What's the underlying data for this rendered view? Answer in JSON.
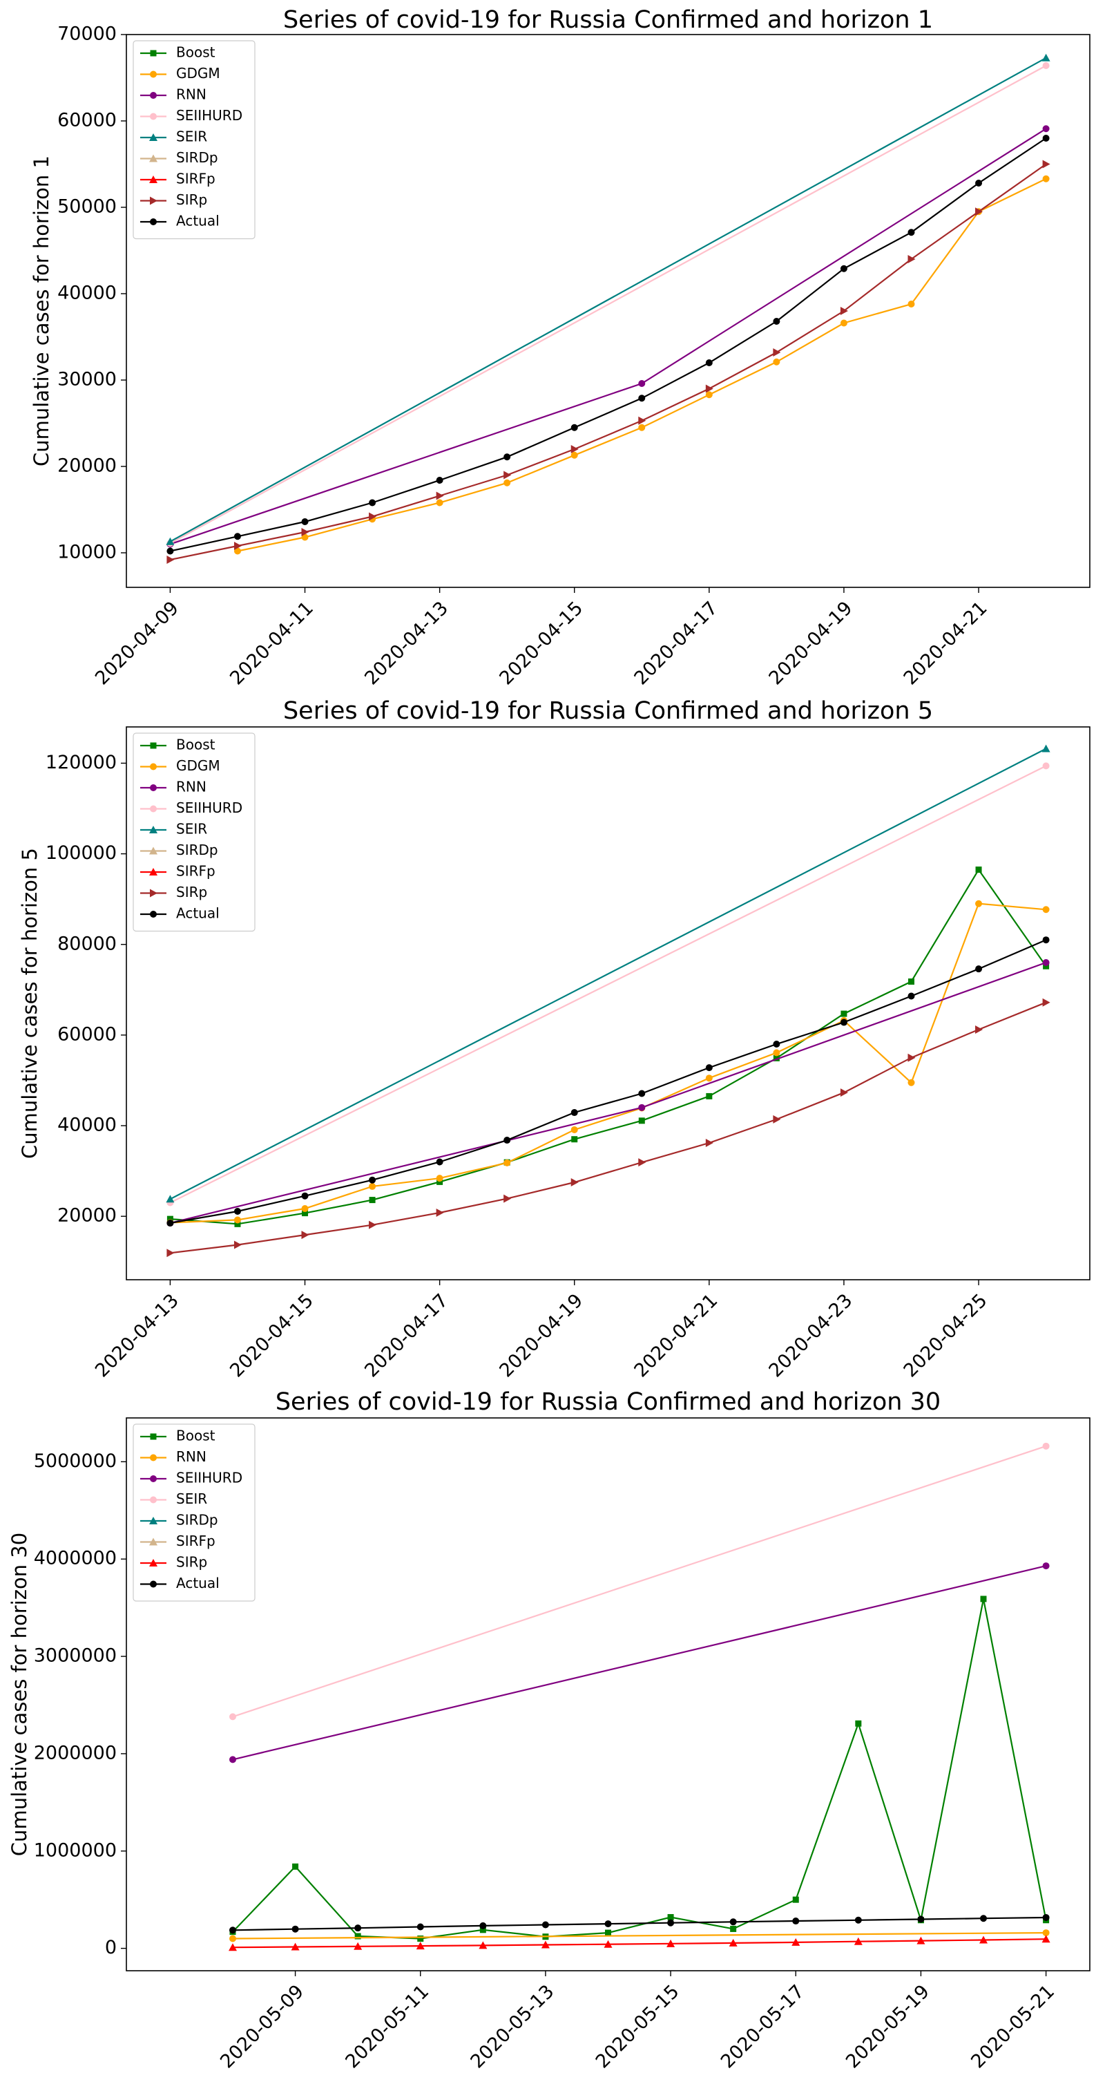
{
  "chart_data": [
    {
      "type": "line",
      "title": "Series of covid-19 for Russia Confirmed and horizon 1",
      "xlabel": "",
      "ylabel": "Cumulative cases for horizon 1",
      "x_range": [
        "2020-04-09",
        "2020-04-22"
      ],
      "ylim": [
        6000,
        70000
      ],
      "y_ticks": [
        10000,
        20000,
        30000,
        40000,
        50000,
        60000,
        70000
      ],
      "x_ticks": [
        "2020-04-09",
        "2020-04-11",
        "2020-04-13",
        "2020-04-15",
        "2020-04-17",
        "2020-04-19",
        "2020-04-21"
      ],
      "grid": false,
      "legend_position": "upper left",
      "series": [
        {
          "name": "Boost",
          "color": "#008000",
          "marker": "square",
          "x": [],
          "y": []
        },
        {
          "name": "GDGM",
          "color": "#ffa500",
          "marker": "circle",
          "x": [
            "2020-04-10",
            "2020-04-11",
            "2020-04-12",
            "2020-04-13",
            "2020-04-14",
            "2020-04-15",
            "2020-04-16",
            "2020-04-17",
            "2020-04-18",
            "2020-04-19",
            "2020-04-20",
            "2020-04-21",
            "2020-04-22"
          ],
          "y": [
            10200,
            11800,
            13900,
            15800,
            18100,
            21300,
            24500,
            28300,
            32100,
            36600,
            38800,
            49500,
            53300
          ]
        },
        {
          "name": "RNN",
          "color": "#800080",
          "marker": "circle",
          "x": [
            "2020-04-09",
            "2020-04-16",
            "2020-04-22"
          ],
          "y": [
            11000,
            29600,
            59100
          ]
        },
        {
          "name": "SEIIHURD",
          "color": "#ffc0cb",
          "marker": "circle",
          "x": [
            "2020-04-09",
            "2020-04-22"
          ],
          "y": [
            11100,
            66400
          ]
        },
        {
          "name": "SEIR",
          "color": "#008080",
          "marker": "triangle",
          "x": [
            "2020-04-09",
            "2020-04-22"
          ],
          "y": [
            11300,
            67300
          ]
        },
        {
          "name": "SIRDp",
          "color": "#d2b48c",
          "marker": "triangle",
          "x": [],
          "y": []
        },
        {
          "name": "SIRFp",
          "color": "#ff0000",
          "marker": "triangle",
          "x": [],
          "y": []
        },
        {
          "name": "SIRp",
          "color": "#a52a2a",
          "marker": "triangle-right",
          "x": [
            "2020-04-09",
            "2020-04-10",
            "2020-04-11",
            "2020-04-12",
            "2020-04-13",
            "2020-04-14",
            "2020-04-15",
            "2020-04-16",
            "2020-04-17",
            "2020-04-18",
            "2020-04-19",
            "2020-04-20",
            "2020-04-21",
            "2020-04-22"
          ],
          "y": [
            9200,
            10800,
            12400,
            14200,
            16600,
            19000,
            22000,
            25300,
            29000,
            33200,
            38000,
            44000,
            49500,
            55000
          ]
        },
        {
          "name": "Actual",
          "color": "#000000",
          "marker": "circle",
          "x": [
            "2020-04-09",
            "2020-04-10",
            "2020-04-11",
            "2020-04-12",
            "2020-04-13",
            "2020-04-14",
            "2020-04-15",
            "2020-04-16",
            "2020-04-17",
            "2020-04-18",
            "2020-04-19",
            "2020-04-20",
            "2020-04-21",
            "2020-04-22"
          ],
          "y": [
            10200,
            11900,
            13600,
            15800,
            18400,
            21100,
            24500,
            27900,
            32000,
            36800,
            42900,
            47100,
            52800,
            58000
          ]
        }
      ]
    },
    {
      "type": "line",
      "title": "Series of covid-19 for Russia Confirmed and horizon 5",
      "xlabel": "",
      "ylabel": "Cumulative cases for horizon 5",
      "x_range": [
        "2020-04-13",
        "2020-04-26"
      ],
      "ylim": [
        6000,
        128000
      ],
      "y_ticks": [
        20000,
        40000,
        60000,
        80000,
        100000,
        120000
      ],
      "x_ticks": [
        "2020-04-13",
        "2020-04-15",
        "2020-04-17",
        "2020-04-19",
        "2020-04-21",
        "2020-04-23",
        "2020-04-25"
      ],
      "grid": false,
      "legend_position": "upper left",
      "series": [
        {
          "name": "Boost",
          "color": "#008000",
          "marker": "square",
          "x": [
            "2020-04-13",
            "2020-04-14",
            "2020-04-15",
            "2020-04-16",
            "2020-04-17",
            "2020-04-18",
            "2020-04-19",
            "2020-04-20",
            "2020-04-21",
            "2020-04-22",
            "2020-04-23",
            "2020-04-24",
            "2020-04-25",
            "2020-04-26"
          ],
          "y": [
            19400,
            18300,
            20700,
            23600,
            27600,
            31900,
            37000,
            41100,
            46500,
            54900,
            64700,
            71800,
            96500,
            75200
          ]
        },
        {
          "name": "GDGM",
          "color": "#ffa500",
          "marker": "circle",
          "x": [
            "2020-04-13",
            "2020-04-14",
            "2020-04-15",
            "2020-04-16",
            "2020-04-17",
            "2020-04-18",
            "2020-04-19",
            "2020-04-20",
            "2020-04-21",
            "2020-04-22",
            "2020-04-23",
            "2020-04-24",
            "2020-04-25",
            "2020-04-26"
          ],
          "y": [
            18600,
            19200,
            21700,
            26600,
            28400,
            31800,
            39100,
            43900,
            50500,
            56100,
            63200,
            49500,
            89000,
            87700
          ]
        },
        {
          "name": "RNN",
          "color": "#800080",
          "marker": "circle",
          "x": [
            "2020-04-13",
            "2020-04-20",
            "2020-04-26"
          ],
          "y": [
            18500,
            44000,
            76000
          ]
        },
        {
          "name": "SEIIHURD",
          "color": "#ffc0cb",
          "marker": "circle",
          "x": [
            "2020-04-13",
            "2020-04-26"
          ],
          "y": [
            23000,
            119400
          ]
        },
        {
          "name": "SEIR",
          "color": "#008080",
          "marker": "triangle",
          "x": [
            "2020-04-13",
            "2020-04-26"
          ],
          "y": [
            23800,
            123200
          ]
        },
        {
          "name": "SIRDp",
          "color": "#d2b48c",
          "marker": "triangle",
          "x": [],
          "y": []
        },
        {
          "name": "SIRFp",
          "color": "#ff0000",
          "marker": "triangle",
          "x": [],
          "y": []
        },
        {
          "name": "SIRp",
          "color": "#a52a2a",
          "marker": "triangle-right",
          "x": [
            "2020-04-13",
            "2020-04-14",
            "2020-04-15",
            "2020-04-16",
            "2020-04-17",
            "2020-04-18",
            "2020-04-19",
            "2020-04-20",
            "2020-04-21",
            "2020-04-22",
            "2020-04-23",
            "2020-04-24",
            "2020-04-25",
            "2020-04-26"
          ],
          "y": [
            11900,
            13700,
            15900,
            18100,
            20800,
            23900,
            27500,
            31900,
            36200,
            41400,
            47300,
            55000,
            61200,
            67200
          ]
        },
        {
          "name": "Actual",
          "color": "#000000",
          "marker": "circle",
          "x": [
            "2020-04-13",
            "2020-04-14",
            "2020-04-15",
            "2020-04-16",
            "2020-04-17",
            "2020-04-18",
            "2020-04-19",
            "2020-04-20",
            "2020-04-21",
            "2020-04-22",
            "2020-04-23",
            "2020-04-24",
            "2020-04-25",
            "2020-04-26"
          ],
          "y": [
            18500,
            21100,
            24500,
            28000,
            32000,
            36800,
            42900,
            47100,
            52800,
            58000,
            62800,
            68600,
            74600,
            81000
          ]
        }
      ]
    },
    {
      "type": "line",
      "title": "Series of covid-19 for Russia Confirmed and horizon 30",
      "xlabel": "",
      "ylabel": "Cumulative cases for horizon 30",
      "x_range": [
        "2020-05-07",
        "2020-05-21"
      ],
      "ylim": [
        -230000,
        5450000
      ],
      "y_ticks": [
        0,
        1000000,
        2000000,
        3000000,
        4000000,
        5000000
      ],
      "x_ticks": [
        "2020-05-09",
        "2020-05-11",
        "2020-05-13",
        "2020-05-15",
        "2020-05-17",
        "2020-05-19",
        "2020-05-21"
      ],
      "grid": false,
      "legend_position": "upper left",
      "series": [
        {
          "name": "Boost",
          "color": "#008000",
          "marker": "square",
          "x": [
            "2020-05-08",
            "2020-05-09",
            "2020-05-10",
            "2020-05-11",
            "2020-05-12",
            "2020-05-13",
            "2020-05-14",
            "2020-05-15",
            "2020-05-16",
            "2020-05-17",
            "2020-05-18",
            "2020-05-19",
            "2020-05-20",
            "2020-05-21"
          ],
          "y": [
            170000,
            840000,
            125000,
            100000,
            190000,
            120000,
            160000,
            320000,
            200000,
            500000,
            2310000,
            290000,
            3590000,
            290000
          ]
        },
        {
          "name": "RNN",
          "color": "#ffa500",
          "marker": "circle",
          "x": [
            "2020-05-08",
            "2020-05-21"
          ],
          "y": [
            100000,
            160000
          ]
        },
        {
          "name": "SEIIHURD",
          "color": "#800080",
          "marker": "circle",
          "x": [
            "2020-05-08",
            "2020-05-21"
          ],
          "y": [
            1940000,
            3930000
          ]
        },
        {
          "name": "SEIR",
          "color": "#ffc0cb",
          "marker": "circle",
          "x": [
            "2020-05-08",
            "2020-05-21"
          ],
          "y": [
            2380000,
            5160000
          ]
        },
        {
          "name": "SIRDp",
          "color": "#008080",
          "marker": "triangle",
          "x": [],
          "y": []
        },
        {
          "name": "SIRFp",
          "color": "#d2b48c",
          "marker": "triangle",
          "x": [],
          "y": []
        },
        {
          "name": "SIRp",
          "color": "#ff0000",
          "marker": "triangle",
          "x": [
            "2020-05-08",
            "2020-05-09",
            "2020-05-10",
            "2020-05-11",
            "2020-05-12",
            "2020-05-13",
            "2020-05-14",
            "2020-05-15",
            "2020-05-16",
            "2020-05-17",
            "2020-05-18",
            "2020-05-19",
            "2020-05-20",
            "2020-05-21"
          ],
          "y": [
            10000,
            15000,
            20000,
            25000,
            30000,
            36000,
            42000,
            48000,
            55000,
            62000,
            70000,
            78000,
            86000,
            95000
          ]
        },
        {
          "name": "Actual",
          "color": "#000000",
          "marker": "circle",
          "x": [
            "2020-05-08",
            "2020-05-09",
            "2020-05-10",
            "2020-05-11",
            "2020-05-12",
            "2020-05-13",
            "2020-05-14",
            "2020-05-15",
            "2020-05-16",
            "2020-05-17",
            "2020-05-18",
            "2020-05-19",
            "2020-05-20",
            "2020-05-21"
          ],
          "y": [
            187000,
            198000,
            209000,
            221000,
            232000,
            242000,
            252000,
            262000,
            272000,
            281000,
            290000,
            299000,
            308000,
            317000
          ]
        }
      ]
    }
  ]
}
